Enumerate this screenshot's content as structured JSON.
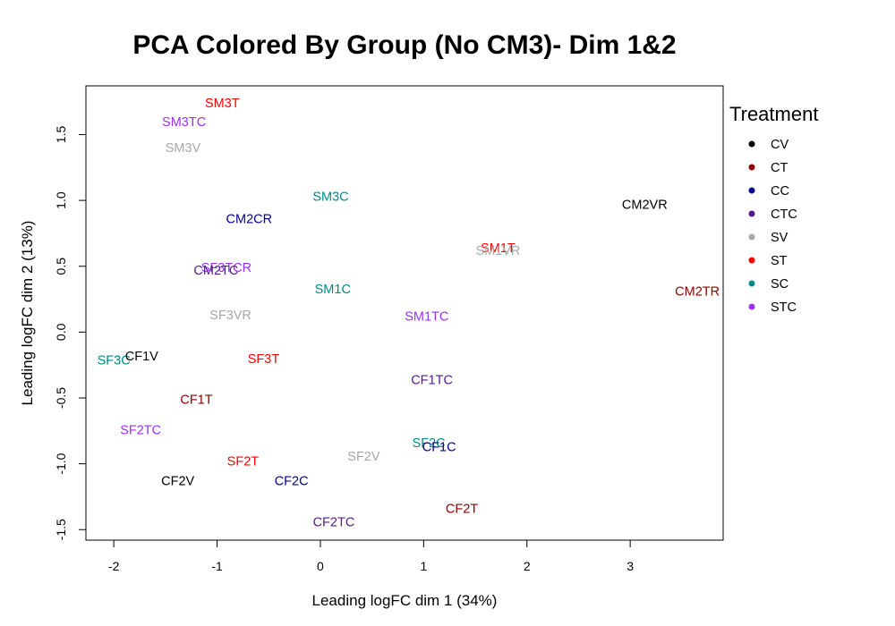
{
  "chart_data": {
    "type": "scatter",
    "title": "PCA Colored By Group (No CM3)- Dim 1&2",
    "xlabel": "Leading logFC dim 1 (34%)",
    "ylabel": "Leading logFC dim 2 (13%)",
    "xlim": [
      -2.27,
      3.9
    ],
    "ylim": [
      -1.58,
      1.87
    ],
    "xticks": [
      -2,
      -1,
      0,
      1,
      2,
      3
    ],
    "yticks": [
      -1.5,
      -1.0,
      -0.5,
      0.0,
      0.5,
      1.0,
      1.5
    ],
    "ytick_labels": [
      "-1.5",
      "-1.0",
      "-0.5",
      "0.0",
      "0.5",
      "1.0",
      "1.5"
    ],
    "grid": false,
    "legend": {
      "title": "Treatment",
      "position": "right",
      "entries": [
        {
          "label": "CV",
          "color": "#000000"
        },
        {
          "label": "CT",
          "color": "#8B0000"
        },
        {
          "label": "CC",
          "color": "#00008B"
        },
        {
          "label": "CTC",
          "color": "#551A8B"
        },
        {
          "label": "SV",
          "color": "#A9A9A9"
        },
        {
          "label": "ST",
          "color": "#FF0000"
        },
        {
          "label": "SC",
          "color": "#008B8B"
        },
        {
          "label": "STC",
          "color": "#9B30FF"
        }
      ]
    },
    "points": [
      {
        "label": "SM3T",
        "x": -0.95,
        "y": 1.74,
        "group": "ST"
      },
      {
        "label": "SM3TC",
        "x": -1.32,
        "y": 1.6,
        "group": "STC"
      },
      {
        "label": "SM3V",
        "x": -1.33,
        "y": 1.4,
        "group": "SV"
      },
      {
        "label": "SM3C",
        "x": 0.1,
        "y": 1.03,
        "group": "SC"
      },
      {
        "label": "CM2CR",
        "x": -0.69,
        "y": 0.86,
        "group": "CC"
      },
      {
        "label": "CM2VR",
        "x": 3.14,
        "y": 0.97,
        "group": "CV"
      },
      {
        "label": "SM1T",
        "x": 1.72,
        "y": 0.64,
        "group": "ST"
      },
      {
        "label": "SM1VR",
        "x": 1.72,
        "y": 0.62,
        "group": "SV"
      },
      {
        "label": "SF3TCR",
        "x": -0.91,
        "y": 0.49,
        "group": "STC"
      },
      {
        "label": "CM2TC",
        "x": -1.01,
        "y": 0.47,
        "group": "CTC"
      },
      {
        "label": "CM2TR",
        "x": 3.65,
        "y": 0.31,
        "group": "CT"
      },
      {
        "label": "SM1C",
        "x": 0.12,
        "y": 0.33,
        "group": "SC"
      },
      {
        "label": "SF3VR",
        "x": -0.87,
        "y": 0.13,
        "group": "SV"
      },
      {
        "label": "SM1TC",
        "x": 1.03,
        "y": 0.12,
        "group": "STC"
      },
      {
        "label": "SF3C",
        "x": -2.0,
        "y": -0.21,
        "group": "SC"
      },
      {
        "label": "CF1V",
        "x": -1.73,
        "y": -0.18,
        "group": "CV"
      },
      {
        "label": "SF3T",
        "x": -0.55,
        "y": -0.2,
        "group": "ST"
      },
      {
        "label": "CF1TC",
        "x": 1.08,
        "y": -0.36,
        "group": "CTC"
      },
      {
        "label": "CF1T",
        "x": -1.2,
        "y": -0.51,
        "group": "CT"
      },
      {
        "label": "SF2TC",
        "x": -1.74,
        "y": -0.74,
        "group": "STC"
      },
      {
        "label": "SF2C",
        "x": 1.05,
        "y": -0.84,
        "group": "SC"
      },
      {
        "label": "CF1C",
        "x": 1.15,
        "y": -0.87,
        "group": "CC"
      },
      {
        "label": "SF2V",
        "x": 0.42,
        "y": -0.94,
        "group": "SV"
      },
      {
        "label": "SF2T",
        "x": -0.75,
        "y": -0.98,
        "group": "ST"
      },
      {
        "label": "CF2V",
        "x": -1.38,
        "y": -1.13,
        "group": "CV"
      },
      {
        "label": "CF2C",
        "x": -0.28,
        "y": -1.13,
        "group": "CC"
      },
      {
        "label": "CF2T",
        "x": 1.37,
        "y": -1.34,
        "group": "CT"
      },
      {
        "label": "CF2TC",
        "x": 0.13,
        "y": -1.44,
        "group": "CTC"
      }
    ]
  }
}
